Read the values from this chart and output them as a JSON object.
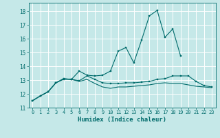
{
  "xlabel": "Humidex (Indice chaleur)",
  "background_color": "#c5e8e8",
  "grid_color": "#ffffff",
  "line_color": "#006b6b",
  "x_values": [
    0,
    1,
    2,
    3,
    4,
    5,
    6,
    7,
    8,
    9,
    10,
    11,
    12,
    13,
    14,
    15,
    16,
    17,
    18,
    19,
    20,
    21,
    22,
    23
  ],
  "line1": [
    11.5,
    11.85,
    12.15,
    12.8,
    13.05,
    13.05,
    13.65,
    13.35,
    13.3,
    13.35,
    13.65,
    15.1,
    15.35,
    14.25,
    15.9,
    17.65,
    18.05,
    16.1,
    16.7,
    14.75,
    null,
    null,
    null,
    null
  ],
  "line2": [
    11.5,
    11.85,
    12.15,
    12.8,
    13.1,
    13.05,
    12.95,
    13.3,
    13.05,
    12.8,
    12.75,
    12.75,
    12.8,
    12.8,
    12.85,
    12.9,
    13.05,
    13.1,
    13.3,
    13.3,
    13.3,
    12.9,
    12.6,
    12.5
  ],
  "line3": [
    11.5,
    11.85,
    12.15,
    12.8,
    13.1,
    13.05,
    12.9,
    13.05,
    12.75,
    12.5,
    12.4,
    12.5,
    12.5,
    12.55,
    12.6,
    12.65,
    12.75,
    12.8,
    12.75,
    12.75,
    12.65,
    12.55,
    12.5,
    12.45
  ],
  "ylim": [
    11,
    18.6
  ],
  "xlim": [
    -0.5,
    23.5
  ],
  "yticks": [
    11,
    12,
    13,
    14,
    15,
    16,
    17,
    18
  ],
  "xtick_labels": [
    "0",
    "1",
    "2",
    "3",
    "4",
    "5",
    "6",
    "7",
    "8",
    "9",
    "10",
    "11",
    "12",
    "13",
    "14",
    "15",
    "16",
    "17",
    "18",
    "19",
    "20",
    "21",
    "22",
    "23"
  ],
  "label_fontsize": 5.0,
  "xlabel_fontsize": 6.5,
  "ylabel_fontsize": 5.5,
  "linewidth": 0.8,
  "markersize": 2.0
}
